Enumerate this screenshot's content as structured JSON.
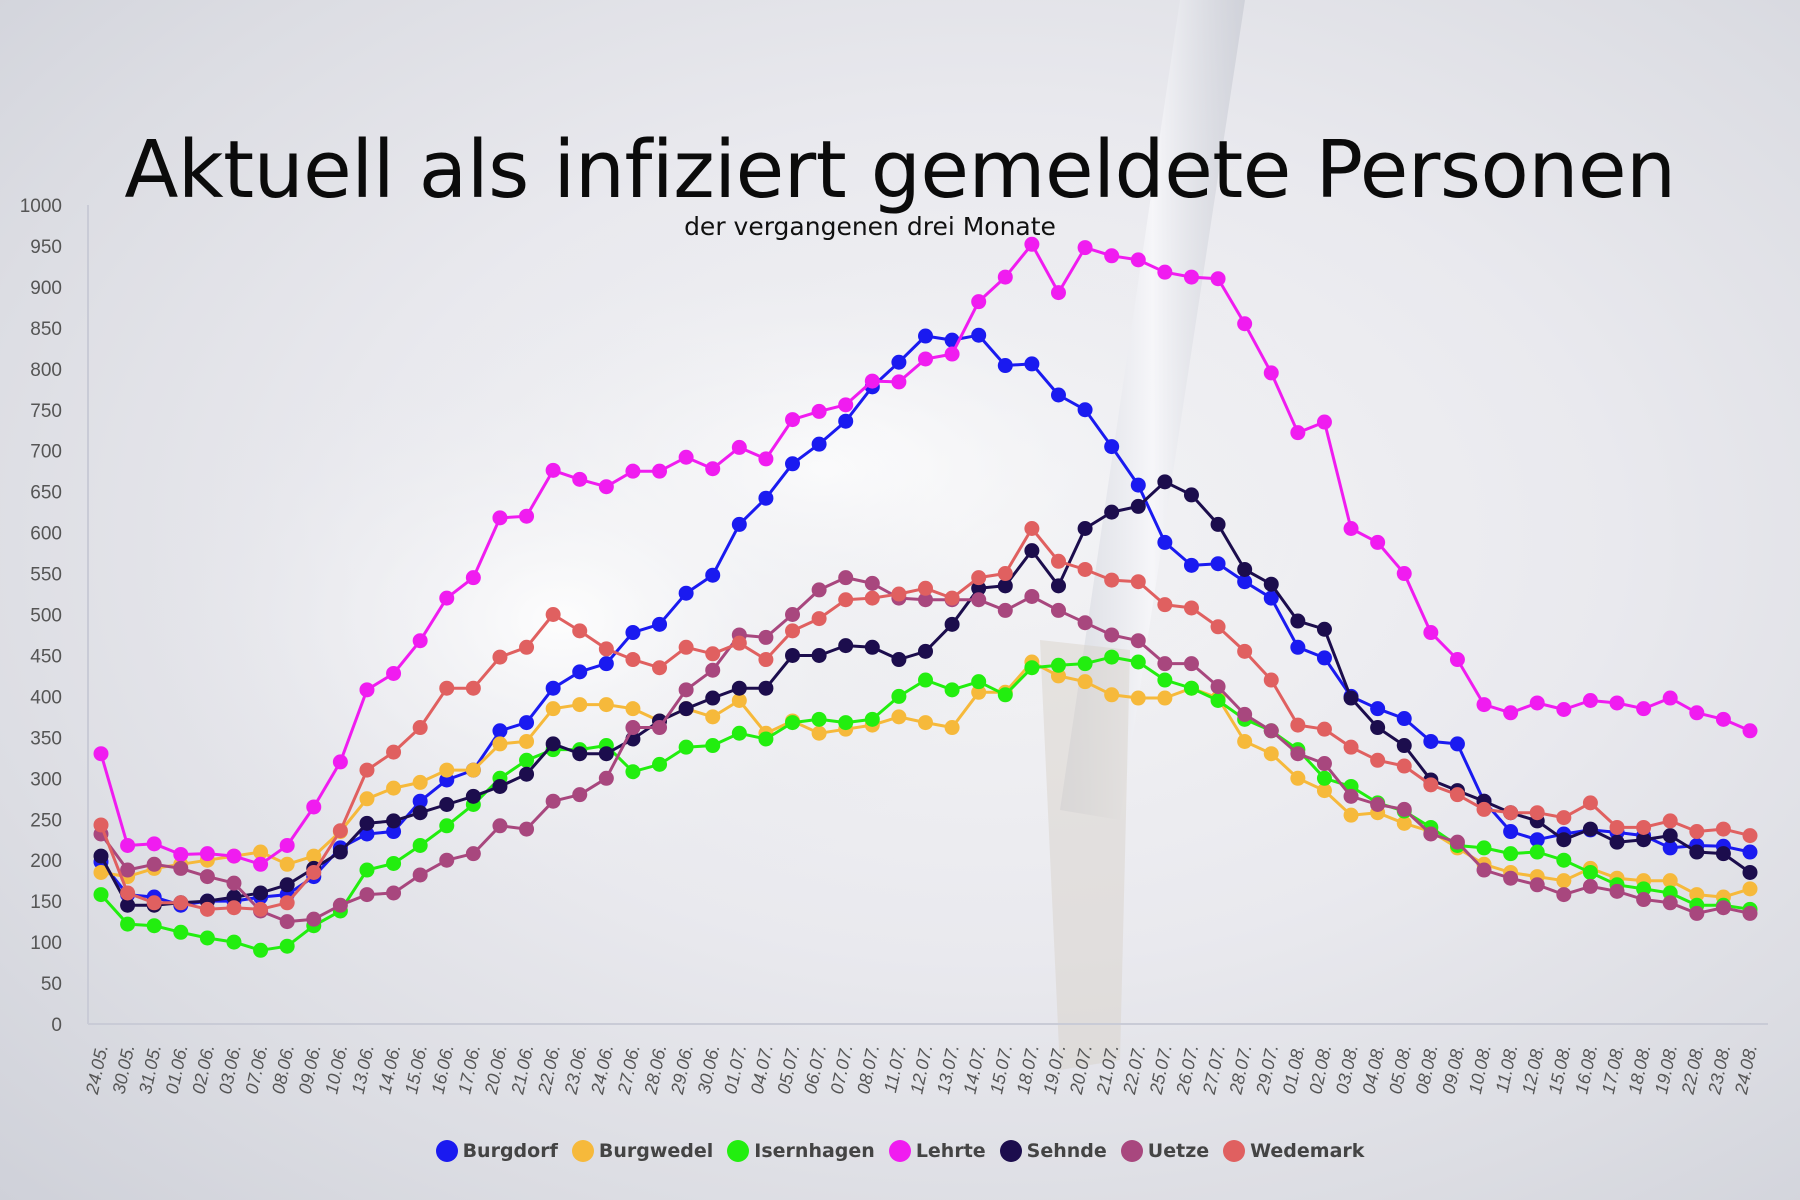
{
  "chart_data": {
    "type": "line",
    "title": "Aktuell als infiziert gemeldete Personen",
    "subtitle": "der vergangenen drei Monate",
    "xlabel": "",
    "ylabel": "",
    "ylim": [
      0,
      1000
    ],
    "yticks": [
      0,
      50,
      100,
      150,
      200,
      250,
      300,
      350,
      400,
      450,
      500,
      550,
      600,
      650,
      700,
      750,
      800,
      850,
      900,
      950,
      1000
    ],
    "grid": false,
    "legend_position": "bottom",
    "categories": [
      "24.05.",
      "30.05.",
      "31.05.",
      "01.06.",
      "02.06.",
      "03.06.",
      "07.06.",
      "08.06.",
      "09.06.",
      "10.06.",
      "13.06.",
      "14.06.",
      "15.06.",
      "16.06.",
      "17.06.",
      "20.06.",
      "21.06.",
      "22.06.",
      "23.06.",
      "24.06.",
      "27.06.",
      "28.06.",
      "29.06.",
      "30.06.",
      "01.07.",
      "04.07.",
      "05.07.",
      "06.07.",
      "07.07.",
      "08.07.",
      "11.07.",
      "12.07.",
      "13.07.",
      "14.07.",
      "15.07.",
      "18.07.",
      "19.07.",
      "20.07.",
      "21.07.",
      "22.07.",
      "25.07.",
      "26.07.",
      "27.07.",
      "28.07.",
      "29.07.",
      "01.08.",
      "02.08.",
      "03.08.",
      "04.08.",
      "05.08.",
      "08.08.",
      "09.08.",
      "10.08.",
      "11.08.",
      "12.08.",
      "15.08.",
      "16.08.",
      "17.08.",
      "18.08.",
      "19.08.",
      "22.08.",
      "23.08.",
      "24.08."
    ],
    "series": [
      {
        "name": "Burgdorf",
        "color": "#1a1af0",
        "values": [
          198,
          158,
          155,
          145,
          150,
          150,
          155,
          158,
          180,
          215,
          232,
          235,
          272,
          298,
          310,
          358,
          368,
          410,
          430,
          440,
          478,
          488,
          526,
          548,
          610,
          642,
          684,
          708,
          736,
          778,
          808,
          840,
          835,
          841,
          804,
          806,
          768,
          750,
          705,
          658,
          588,
          560,
          562,
          540,
          520,
          460,
          447,
          400,
          385,
          373,
          345,
          342,
          272,
          235,
          225,
          232,
          237,
          234,
          230,
          215,
          218,
          217,
          210
        ]
      },
      {
        "name": "Burgwedel",
        "color": "#f6b93b",
        "values": [
          185,
          180,
          190,
          195,
          200,
          205,
          210,
          195,
          205,
          235,
          275,
          288,
          295,
          310,
          310,
          342,
          345,
          385,
          390,
          390,
          385,
          370,
          385,
          375,
          395,
          355,
          370,
          355,
          360,
          365,
          375,
          368,
          362,
          405,
          405,
          442,
          425,
          418,
          402,
          398,
          398,
          410,
          398,
          345,
          330,
          300,
          285,
          255,
          258,
          245,
          235,
          215,
          195,
          185,
          180,
          175,
          190,
          178,
          175,
          175,
          158,
          155,
          165
        ]
      },
      {
        "name": "Isernhagen",
        "color": "#22ee0f",
        "values": [
          158,
          122,
          120,
          112,
          105,
          100,
          90,
          95,
          120,
          138,
          188,
          196,
          218,
          242,
          268,
          300,
          322,
          335,
          335,
          340,
          308,
          317,
          338,
          340,
          355,
          348,
          368,
          372,
          368,
          372,
          400,
          420,
          408,
          418,
          402,
          435,
          438,
          440,
          448,
          442,
          420,
          410,
          395,
          372,
          358,
          335,
          300,
          290,
          270,
          260,
          240,
          218,
          215,
          208,
          210,
          200,
          185,
          170,
          165,
          160,
          145,
          145,
          140
        ]
      },
      {
        "name": "Lehrte",
        "color": "#f01cf0",
        "values": [
          330,
          218,
          220,
          207,
          208,
          205,
          195,
          218,
          265,
          320,
          408,
          428,
          468,
          520,
          545,
          618,
          620,
          676,
          665,
          656,
          675,
          675,
          692,
          678,
          704,
          690,
          738,
          748,
          756,
          785,
          784,
          812,
          818,
          882,
          912,
          952,
          893,
          948,
          938,
          933,
          918,
          912,
          910,
          855,
          795,
          722,
          735,
          605,
          588,
          550,
          478,
          445,
          390,
          380,
          392,
          384,
          395,
          392,
          385,
          398,
          380,
          372,
          358
        ]
      },
      {
        "name": "Sehnde",
        "color": "#1c0d4d",
        "values": [
          205,
          145,
          145,
          148,
          150,
          155,
          160,
          170,
          190,
          210,
          245,
          248,
          258,
          268,
          278,
          290,
          305,
          342,
          330,
          330,
          348,
          370,
          385,
          398,
          410,
          410,
          450,
          450,
          462,
          460,
          445,
          455,
          488,
          532,
          535,
          578,
          535,
          605,
          625,
          632,
          662,
          646,
          610,
          555,
          537,
          492,
          482,
          398,
          362,
          340,
          298,
          285,
          272,
          258,
          248,
          225,
          238,
          222,
          225,
          230,
          210,
          208,
          185
        ]
      },
      {
        "name": "Uetze",
        "color": "#a8477e",
        "values": [
          232,
          188,
          195,
          190,
          180,
          172,
          138,
          125,
          128,
          145,
          158,
          160,
          182,
          200,
          208,
          242,
          238,
          272,
          280,
          300,
          362,
          362,
          408,
          432,
          475,
          472,
          500,
          530,
          545,
          538,
          520,
          518,
          518,
          518,
          505,
          522,
          505,
          490,
          475,
          468,
          440,
          440,
          412,
          378,
          358,
          330,
          318,
          278,
          268,
          262,
          232,
          222,
          188,
          178,
          170,
          158,
          168,
          162,
          152,
          148,
          135,
          142,
          135
        ]
      },
      {
        "name": "Wedemark",
        "color": "#e06060",
        "values": [
          243,
          160,
          148,
          148,
          140,
          142,
          140,
          148,
          185,
          236,
          310,
          332,
          362,
          410,
          410,
          448,
          460,
          500,
          480,
          458,
          445,
          435,
          460,
          452,
          465,
          445,
          480,
          495,
          518,
          520,
          525,
          532,
          520,
          545,
          550,
          605,
          565,
          555,
          542,
          540,
          512,
          508,
          485,
          455,
          420,
          365,
          360,
          338,
          322,
          315,
          292,
          280,
          262,
          258,
          258,
          252,
          270,
          240,
          240,
          248,
          235,
          238,
          230
        ]
      }
    ]
  }
}
